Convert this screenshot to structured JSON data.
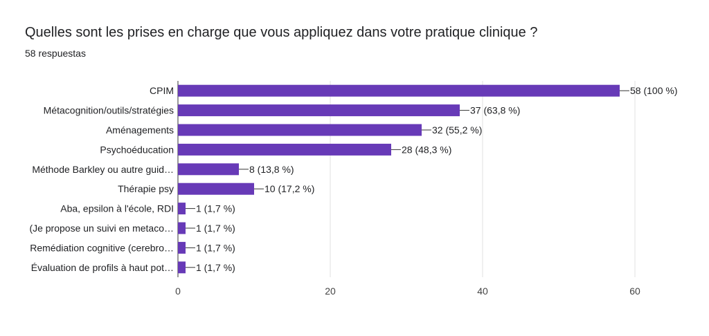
{
  "header": {
    "title": "Quelles sont les prises en charge que vous appliquez dans votre pratique clinique ?",
    "subtitle": "58 respuestas"
  },
  "colors": {
    "bar": "#673ab7",
    "grid": "#e0e0e0",
    "axis": "#333333",
    "leader": "#333333"
  },
  "chart_data": {
    "type": "bar",
    "orientation": "horizontal",
    "title": "Quelles sont les prises en charge que vous appliquez dans votre pratique clinique ?",
    "subtitle": "58 respuestas",
    "categories": [
      "CPIM",
      "Métacognition/outils/stratégies",
      "Aménagements",
      "Psychoéducation",
      "Méthode Barkley ou autre guid…",
      "Thérapie psy",
      "Aba, epsilon à l'école, RDI",
      "(Je propose un suivi en metaco…",
      "Remédiation cognitive (cerebro…",
      "Évaluation de profils à haut pot…"
    ],
    "values": [
      58,
      37,
      32,
      28,
      8,
      10,
      1,
      1,
      1,
      1
    ],
    "data_labels": [
      "58 (100 %)",
      "37 (63,8 %)",
      "32 (55,2 %)",
      "28 (48,3 %)",
      "8 (13,8 %)",
      "10 (17,2 %)",
      "1 (1,7 %)",
      "1 (1,7 %)",
      "1 (1,7 %)",
      "1 (1,7 %)"
    ],
    "xlim": [
      0,
      60
    ],
    "xticks": [
      0,
      20,
      40,
      60
    ],
    "xlabel": "",
    "ylabel": "",
    "grid": true
  }
}
